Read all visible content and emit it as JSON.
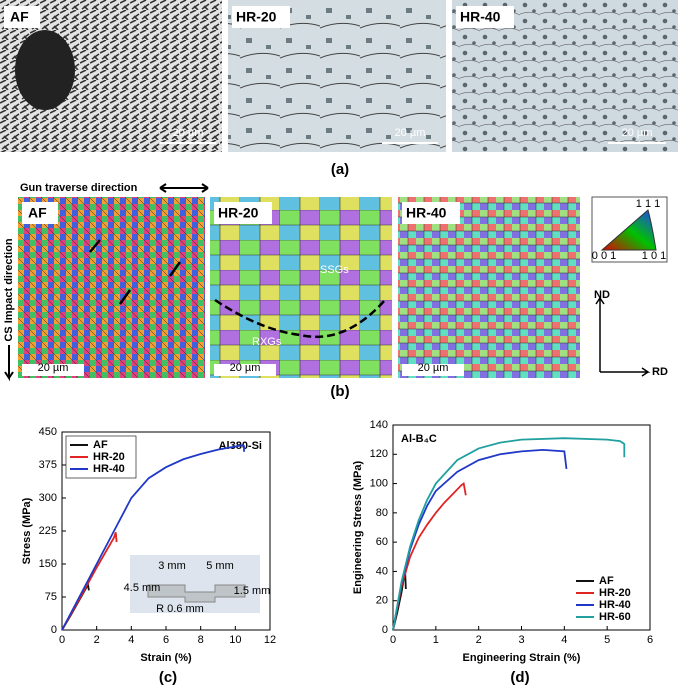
{
  "figure": {
    "a": {
      "label": "(a)",
      "panels": [
        {
          "label": "AF",
          "scale": "20 µm"
        },
        {
          "label": "HR-20",
          "scale": "20 µm"
        },
        {
          "label": "HR-40",
          "scale": "20 µm"
        }
      ]
    },
    "b": {
      "label": "(b)",
      "gun_direction": "Gun traverse direction",
      "impact_direction": "CS Impact direction",
      "panels": [
        {
          "label": "AF",
          "scale": "20 µm"
        },
        {
          "label": "HR-20",
          "scale": "20 µm"
        },
        {
          "label": "HR-40",
          "scale": "20 µm"
        }
      ],
      "ssg": "SSGs",
      "rxg": "RXGs",
      "ipf": [
        "1 1 1",
        "0 0 1",
        "1 0 1"
      ],
      "axes": [
        "ND",
        "RD"
      ]
    },
    "c_label": "(c)",
    "d_label": "(d)"
  },
  "chart_data": [
    {
      "type": "line",
      "title": "Al380-Si",
      "xlabel": "Strain (%)",
      "ylabel": "Stress (MPa)",
      "xlim": [
        0,
        12
      ],
      "xticks": [
        0,
        2,
        4,
        6,
        8,
        10,
        12
      ],
      "ylim": [
        0,
        450
      ],
      "yticks": [
        0,
        75,
        150,
        225,
        300,
        375,
        450
      ],
      "legend": "upper left",
      "annotations": [
        "3 mm",
        "5 mm",
        "4.5 mm",
        "1.5 mm",
        "R 0.6 mm"
      ],
      "series": [
        {
          "name": "AF",
          "color": "#111111",
          "x": [
            0,
            0.5,
            1,
            1.5,
            1.55
          ],
          "values": [
            0,
            33,
            68,
            103,
            90
          ]
        },
        {
          "name": "HR-20",
          "color": "#e02424",
          "x": [
            0,
            1,
            2,
            3,
            3.1,
            3.15
          ],
          "values": [
            0,
            70,
            142,
            210,
            222,
            200
          ]
        },
        {
          "name": "HR-40",
          "color": "#2038c8",
          "x": [
            0,
            1,
            2,
            3,
            4,
            5,
            6,
            7,
            8,
            9,
            10,
            10.4,
            10.5,
            10.5
          ],
          "values": [
            0,
            75,
            150,
            225,
            300,
            345,
            370,
            388,
            400,
            410,
            417,
            420,
            418,
            405
          ]
        }
      ]
    },
    {
      "type": "line",
      "title": "Al-B₄C",
      "xlabel": "Engineering Strain (%)",
      "ylabel": "Engineering Stress (MPa)",
      "xlim": [
        0,
        6
      ],
      "xticks": [
        0,
        1,
        2,
        3,
        4,
        5,
        6
      ],
      "ylim": [
        0,
        140
      ],
      "yticks": [
        0,
        20,
        40,
        60,
        80,
        100,
        120,
        140
      ],
      "legend": "lower right",
      "series": [
        {
          "name": "AF",
          "color": "#111111",
          "x": [
            0,
            0.1,
            0.2,
            0.25,
            0.28,
            0.3
          ],
          "values": [
            0,
            12,
            26,
            35,
            42,
            28
          ]
        },
        {
          "name": "HR-20",
          "color": "#e02424",
          "x": [
            0,
            0.2,
            0.4,
            0.6,
            0.8,
            1,
            1.2,
            1.4,
            1.6,
            1.65,
            1.7
          ],
          "values": [
            0,
            30,
            50,
            63,
            72,
            80,
            87,
            93,
            99,
            100,
            92
          ]
        },
        {
          "name": "HR-40",
          "color": "#2038c8",
          "x": [
            0,
            0.2,
            0.4,
            0.6,
            0.8,
            1,
            1.5,
            2,
            2.5,
            3,
            3.5,
            4,
            4.05
          ],
          "values": [
            0,
            32,
            55,
            72,
            85,
            95,
            108,
            116,
            120,
            122,
            123,
            122,
            110
          ]
        },
        {
          "name": "HR-60",
          "color": "#20a0a0",
          "x": [
            0,
            0.2,
            0.4,
            0.6,
            0.8,
            1,
            1.5,
            2,
            2.5,
            3,
            4,
            5,
            5.3,
            5.4,
            5.4
          ],
          "values": [
            0,
            33,
            57,
            75,
            89,
            100,
            116,
            124,
            128,
            130,
            131,
            130,
            129,
            127,
            118
          ]
        }
      ]
    }
  ]
}
